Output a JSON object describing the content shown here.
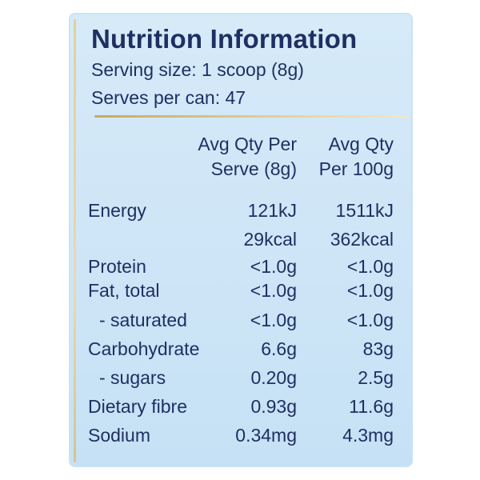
{
  "title": "Nutrition Information",
  "serving_size": "Serving size: 1 scoop (8g)",
  "serves_per_can": "Serves per can: 47",
  "headers": {
    "col1_line1": "Avg Qty Per",
    "col1_line2": "Serve (8g)",
    "col2_line1": "Avg Qty",
    "col2_line2": "Per 100g"
  },
  "rows": [
    {
      "label": "Energy",
      "per_serve": "121kJ",
      "per_100g": "1511kJ"
    },
    {
      "label": "",
      "per_serve": "29kcal",
      "per_100g": "362kcal"
    },
    {
      "label": "Protein",
      "per_serve": "<1.0g",
      "per_100g": "<1.0g"
    },
    {
      "label": "Fat, total",
      "per_serve": "<1.0g",
      "per_100g": "<1.0g"
    },
    {
      "label": "- saturated",
      "per_serve": "<1.0g",
      "per_100g": "<1.0g"
    },
    {
      "label": "Carbohydrate",
      "per_serve": "6.6g",
      "per_100g": "83g"
    },
    {
      "label": "- sugars",
      "per_serve": "0.20g",
      "per_100g": "2.5g"
    },
    {
      "label": "Dietary fibre",
      "per_serve": "0.93g",
      "per_100g": "11.6g"
    },
    {
      "label": "Sodium",
      "per_serve": "0.34mg",
      "per_100g": "4.3mg"
    }
  ]
}
